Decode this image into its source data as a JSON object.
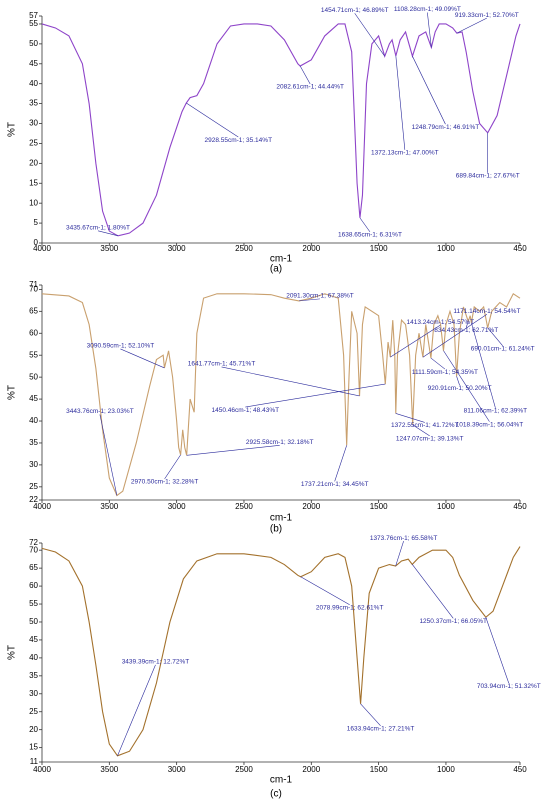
{
  "chart_data": [
    {
      "type": "line",
      "label": "(a)",
      "xlabel": "cm-1",
      "ylabel": "%T",
      "xlim": [
        4000,
        450
      ],
      "xticks": [
        4000,
        3500,
        3000,
        2500,
        2000,
        1500,
        1000,
        450
      ],
      "ylim": [
        0,
        57
      ],
      "yticks": [
        0,
        5,
        10,
        15,
        20,
        25,
        30,
        35,
        40,
        45,
        50,
        55,
        57
      ],
      "x": [
        4000,
        3900,
        3800,
        3700,
        3650,
        3600,
        3550,
        3500,
        3435.67,
        3350,
        3250,
        3150,
        3050,
        2960,
        2928.55,
        2900,
        2850,
        2800,
        2700,
        2600,
        2500,
        2400,
        2300,
        2200,
        2100,
        2082.61,
        2000,
        1900,
        1800,
        1750,
        1700,
        1660,
        1638.65,
        1620,
        1590,
        1550,
        1500,
        1454.71,
        1420,
        1400,
        1372.13,
        1340,
        1300,
        1248.79,
        1200,
        1150,
        1108.28,
        1080,
        1050,
        1000,
        950,
        919.33,
        880,
        850,
        800,
        750,
        689.84,
        620,
        550,
        480,
        450
      ],
      "series": [
        {
          "color": "#8e44c9",
          "values": [
            55,
            54,
            52,
            45,
            35,
            20,
            8,
            3,
            1.8,
            2.5,
            5,
            12,
            24,
            33,
            35.14,
            36.5,
            37,
            40,
            50,
            54.5,
            55,
            55,
            54.5,
            51,
            45,
            44.44,
            46,
            52,
            55,
            55,
            48,
            15,
            6.31,
            12,
            40,
            50,
            52,
            46.89,
            50,
            51,
            47,
            51,
            53,
            46.91,
            52,
            53,
            49.09,
            53,
            55,
            55,
            54,
            52.7,
            53,
            48,
            38,
            30,
            27.67,
            32,
            42,
            52,
            55
          ]
        }
      ],
      "annotations": [
        {
          "x": 3435.67,
          "y": 1.8,
          "label": "3435.67cm-1; 1.80%T"
        },
        {
          "x": 2928.55,
          "y": 35.14,
          "label": "2928.55cm-1; 35.14%T"
        },
        {
          "x": 2082.61,
          "y": 44.44,
          "label": "2082.61cm-1; 44.44%T"
        },
        {
          "x": 1638.65,
          "y": 6.31,
          "label": "1638.65cm-1; 6.31%T"
        },
        {
          "x": 1454.71,
          "y": 46.89,
          "label": "1454.71cm-1; 46.89%T"
        },
        {
          "x": 1372.13,
          "y": 47.0,
          "label": "1372.13cm-1; 47.00%T"
        },
        {
          "x": 1108.28,
          "y": 49.09,
          "label": "1108.28cm-1; 49.09%T"
        },
        {
          "x": 1248.79,
          "y": 46.91,
          "label": "1248.79cm-1; 46.91%T"
        },
        {
          "x": 919.33,
          "y": 52.7,
          "label": "919.33cm-1; 52.70%T"
        },
        {
          "x": 689.84,
          "y": 27.67,
          "label": "689.84cm-1; 27.67%T"
        }
      ]
    },
    {
      "type": "line",
      "label": "(b)",
      "xlabel": "cm-1",
      "ylabel": "%T",
      "xlim": [
        4000,
        450
      ],
      "xticks": [
        4000,
        3500,
        3000,
        2500,
        2000,
        1500,
        1000,
        450
      ],
      "ylim": [
        22,
        71
      ],
      "yticks": [
        22,
        25,
        30,
        35,
        40,
        45,
        50,
        55,
        60,
        65,
        70,
        71
      ],
      "x": [
        4000,
        3800,
        3700,
        3650,
        3600,
        3550,
        3500,
        3443.76,
        3400,
        3300,
        3200,
        3150,
        3100,
        3090.59,
        3060,
        3030,
        3000,
        2985,
        2970.5,
        2955,
        2940,
        2925.58,
        2900,
        2870,
        2850,
        2800,
        2700,
        2500,
        2300,
        2200,
        2091.3,
        2000,
        1900,
        1800,
        1760,
        1737.21,
        1720,
        1700,
        1660,
        1641.77,
        1620,
        1600,
        1500,
        1470,
        1450.46,
        1430,
        1413.24,
        1395,
        1380,
        1372.55,
        1360,
        1330,
        1300,
        1270,
        1247.07,
        1225,
        1200,
        1171.14,
        1150,
        1111.59,
        1090,
        1060,
        1040,
        1018.39,
        1000,
        970,
        940,
        920.91,
        900,
        870,
        834.43,
        820,
        811.06,
        790,
        750,
        720,
        690.01,
        660,
        600,
        550,
        500,
        450
      ],
      "series": [
        {
          "color": "#c9a06e",
          "values": [
            69,
            68.5,
            67,
            62,
            52,
            38,
            27,
            23.03,
            24,
            35,
            48,
            54,
            55,
            52.1,
            56,
            50,
            40,
            34,
            32.28,
            38,
            34,
            32.18,
            45,
            42,
            60,
            68,
            69,
            69,
            68.8,
            68,
            67.38,
            68,
            69,
            68,
            55,
            34.45,
            50,
            65,
            60,
            45.71,
            62,
            66,
            64,
            55,
            48.43,
            58,
            54.57,
            63,
            55,
            41.72,
            55,
            63,
            62,
            55,
            39.13,
            55,
            60,
            54.54,
            62,
            54.35,
            62,
            64,
            62,
            56.04,
            62,
            65,
            62,
            50.2,
            60,
            66,
            62.71,
            64,
            62.39,
            66,
            65,
            66,
            61.24,
            65,
            67,
            66,
            69,
            68
          ]
        }
      ],
      "annotations": [
        {
          "x": 3090.59,
          "y": 52.1,
          "label": "3090.59cm-1; 52.10%T"
        },
        {
          "x": 3443.76,
          "y": 23.03,
          "label": "3443.76cm-1; 23.03%T"
        },
        {
          "x": 2970.5,
          "y": 32.28,
          "label": "2970.50cm-1; 32.28%T"
        },
        {
          "x": 2925.58,
          "y": 32.18,
          "label": "2925.58cm-1; 32.18%T"
        },
        {
          "x": 2091.3,
          "y": 67.38,
          "label": "2091.30cm-1; 67.38%T"
        },
        {
          "x": 1737.21,
          "y": 34.45,
          "label": "1737.21cm-1; 34.45%T"
        },
        {
          "x": 1641.77,
          "y": 45.71,
          "label": "1641.77cm-1; 45.71%T"
        },
        {
          "x": 1450.46,
          "y": 48.43,
          "label": "1450.46cm-1; 48.43%T"
        },
        {
          "x": 1413.24,
          "y": 54.57,
          "label": "1413.24cm-1; 54.57%T"
        },
        {
          "x": 1372.55,
          "y": 41.72,
          "label": "1372.55cm-1; 41.72%T"
        },
        {
          "x": 1247.07,
          "y": 39.13,
          "label": "1247.07cm-1; 39.13%T"
        },
        {
          "x": 1171.14,
          "y": 54.54,
          "label": "1171.14cm-1; 54.54%T"
        },
        {
          "x": 1111.59,
          "y": 54.35,
          "label": "1111.59cm-1; 54.35%T"
        },
        {
          "x": 1018.39,
          "y": 56.04,
          "label": "1018.39cm-1; 56.04%T"
        },
        {
          "x": 920.91,
          "y": 50.2,
          "label": "920.91cm-1; 50.20%T"
        },
        {
          "x": 834.43,
          "y": 62.71,
          "label": "834.43cm-1; 62.71%T"
        },
        {
          "x": 811.06,
          "y": 62.39,
          "label": "811.06cm-1; 62.39%T"
        },
        {
          "x": 690.01,
          "y": 61.24,
          "label": "690.01cm-1; 61.24%T"
        }
      ]
    },
    {
      "type": "line",
      "label": "(c)",
      "xlabel": "cm-1",
      "ylabel": "%T",
      "xlim": [
        4000,
        450
      ],
      "xticks": [
        4000,
        3500,
        3000,
        2500,
        2000,
        1500,
        1000,
        450
      ],
      "ylim": [
        11,
        72
      ],
      "yticks": [
        11,
        15,
        20,
        25,
        30,
        35,
        40,
        45,
        50,
        55,
        60,
        65,
        70,
        72
      ],
      "x": [
        4000,
        3900,
        3800,
        3700,
        3650,
        3600,
        3550,
        3500,
        3439.39,
        3350,
        3250,
        3150,
        3050,
        2950,
        2850,
        2700,
        2500,
        2300,
        2200,
        2100,
        2078.99,
        2000,
        1900,
        1800,
        1750,
        1700,
        1660,
        1633.94,
        1610,
        1570,
        1500,
        1420,
        1373.76,
        1330,
        1280,
        1250.37,
        1200,
        1100,
        1000,
        950,
        900,
        800,
        703.94,
        650,
        580,
        500,
        450
      ],
      "series": [
        {
          "color": "#a3712c",
          "values": [
            70.5,
            69.5,
            67,
            60,
            50,
            38,
            25,
            16,
            12.72,
            14,
            20,
            33,
            50,
            62,
            67,
            69,
            69,
            68,
            66,
            63,
            62.61,
            64,
            68,
            69,
            68,
            60,
            40,
            27.21,
            40,
            58,
            65,
            66,
            65.58,
            67,
            67.5,
            66.05,
            68,
            70,
            70,
            68,
            63,
            56,
            51.32,
            53,
            60,
            68,
            71
          ]
        }
      ],
      "annotations": [
        {
          "x": 3439.39,
          "y": 12.72,
          "label": "3439.39cm-1; 12.72%T"
        },
        {
          "x": 2078.99,
          "y": 62.61,
          "label": "2078.99cm-1; 62.61%T"
        },
        {
          "x": 1633.94,
          "y": 27.21,
          "label": "1633.94cm-1; 27.21%T"
        },
        {
          "x": 1373.76,
          "y": 65.58,
          "label": "1373.76cm-1; 65.58%T"
        },
        {
          "x": 1250.37,
          "y": 66.05,
          "label": "1250.37cm-1; 66.05%T"
        },
        {
          "x": 703.94,
          "y": 51.32,
          "label": "703.94cm-1; 51.32%T"
        }
      ]
    }
  ]
}
